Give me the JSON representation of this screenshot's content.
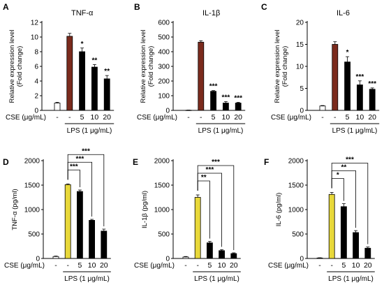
{
  "colors": {
    "control": "#ffffff",
    "lps_qpcr": "#7b2b1d",
    "lps_elisa": "#e8d83a",
    "treated": "#000000",
    "axis": "#000000"
  },
  "chart_data": [
    {
      "panel": "A",
      "type": "bar",
      "title": "TNF-α",
      "ylabel": [
        "Relative expression level",
        "(Fold change)"
      ],
      "ylim": [
        0,
        12
      ],
      "yticks": [
        0,
        2,
        4,
        6,
        8,
        10,
        12
      ],
      "categories": [
        "-",
        "-",
        "5",
        "10",
        "20"
      ],
      "values": [
        1.0,
        10.1,
        8.0,
        5.9,
        4.3
      ],
      "errors": [
        0.1,
        0.4,
        0.5,
        0.35,
        0.45
      ],
      "fills": [
        "control",
        "lps_qpcr",
        "treated",
        "treated",
        "treated"
      ],
      "significance": [
        "",
        "",
        "*",
        "**",
        "**"
      ],
      "row_label": "CSE (μg/mL)",
      "group_label": "LPS (1 μg/mL)"
    },
    {
      "panel": "B",
      "type": "bar",
      "title": "IL-1β",
      "ylabel": [
        "Relative expression level",
        "(Fold change)"
      ],
      "ylim": [
        0,
        600
      ],
      "yticks": [
        0,
        100,
        200,
        300,
        400,
        500,
        600
      ],
      "categories": [
        "-",
        "-",
        "5",
        "10",
        "20"
      ],
      "values": [
        1,
        465,
        130,
        50,
        50
      ],
      "errors": [
        1,
        10,
        5,
        10,
        5
      ],
      "fills": [
        "control",
        "lps_qpcr",
        "treated",
        "treated",
        "treated"
      ],
      "significance": [
        "",
        "",
        "***",
        "***",
        "***"
      ],
      "row_label": "CSE (μg/mL)",
      "group_label": "LPS (1 μg/mL)"
    },
    {
      "panel": "C",
      "type": "bar",
      "title": "IL-6",
      "ylabel": [
        "Relative expression level",
        "(Fold change)"
      ],
      "ylim": [
        0,
        20
      ],
      "yticks": [
        0,
        5,
        10,
        15,
        20
      ],
      "categories": [
        "-",
        "-",
        "5",
        "10",
        "20"
      ],
      "values": [
        1.0,
        15.0,
        11.0,
        5.8,
        4.8
      ],
      "errors": [
        0.1,
        0.6,
        1.2,
        0.9,
        0.3
      ],
      "fills": [
        "control",
        "lps_qpcr",
        "treated",
        "treated",
        "treated"
      ],
      "significance": [
        "",
        "",
        "*",
        "***",
        "***"
      ],
      "row_label": "CSE (μg/mL)",
      "group_label": "LPS (1 μg/mL)"
    },
    {
      "panel": "D",
      "type": "bar",
      "title": "",
      "ylabel": [
        "TNF-α (pg/ml)"
      ],
      "ylim": [
        0,
        2000
      ],
      "yticks": [
        0,
        500,
        1000,
        1500,
        2000
      ],
      "categories": [
        "-",
        "-",
        "5",
        "10",
        "20"
      ],
      "values": [
        40,
        1510,
        1370,
        780,
        560
      ],
      "errors": [
        10,
        15,
        30,
        20,
        40
      ],
      "fills": [
        "control",
        "lps_elisa",
        "treated",
        "treated",
        "treated"
      ],
      "brackets": [
        "***",
        "***",
        "***"
      ],
      "row_label": "CSE (μg/mL)",
      "group_label": "LPS (1 μg/mL)"
    },
    {
      "panel": "E",
      "type": "bar",
      "title": "",
      "ylabel": [
        "IL-1β (pg/ml)"
      ],
      "ylim": [
        0,
        2000
      ],
      "yticks": [
        0,
        500,
        1000,
        1500,
        2000
      ],
      "categories": [
        "-",
        "-",
        "5",
        "10",
        "20"
      ],
      "values": [
        30,
        1250,
        320,
        160,
        100
      ],
      "errors": [
        10,
        50,
        30,
        20,
        15
      ],
      "fills": [
        "control",
        "lps_elisa",
        "treated",
        "treated",
        "treated"
      ],
      "brackets": [
        "**",
        "***",
        "***"
      ],
      "row_label": "CSE (μg/mL)",
      "group_label": "LPS (1 μg/mL)"
    },
    {
      "panel": "F",
      "type": "bar",
      "title": "",
      "ylabel": [
        "IL-6 (pg/ml)"
      ],
      "ylim": [
        0,
        2000
      ],
      "yticks": [
        0,
        500,
        1000,
        1500,
        2000
      ],
      "categories": [
        "-",
        "-",
        "5",
        "10",
        "20"
      ],
      "values": [
        10,
        1310,
        1060,
        530,
        210
      ],
      "errors": [
        5,
        40,
        60,
        40,
        25
      ],
      "fills": [
        "control",
        "lps_elisa",
        "treated",
        "treated",
        "treated"
      ],
      "brackets": [
        "*",
        "**",
        "***"
      ],
      "row_label": "CSE (μg/mL)",
      "group_label": "LPS (1 μg/mL)"
    }
  ]
}
